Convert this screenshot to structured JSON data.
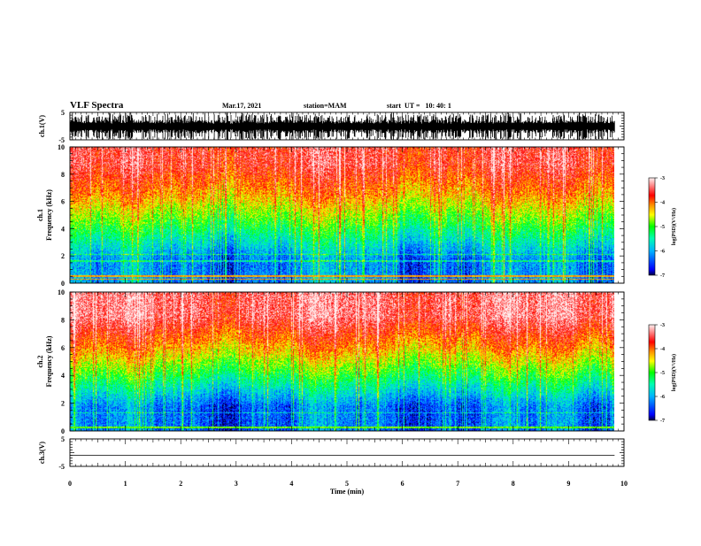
{
  "header": {
    "title": "VLF Spectra",
    "date": "Mar.17, 2021",
    "station": "station=MAM",
    "start": "start  UT =   10: 40: 1"
  },
  "chart_data": [
    {
      "type": "line",
      "ylabel": "ch.1(V)",
      "ylim": [
        -5,
        5
      ],
      "y_ticks": [
        "5",
        "-5"
      ],
      "description": "dense black impulsive waveform spanning most of the range"
    },
    {
      "type": "heatmap",
      "ylabel_line1": "ch.1",
      "ylabel_line2": "Frequency  (kHz)",
      "ylim": [
        0,
        10
      ],
      "y_ticks": [
        "0",
        "2",
        "4",
        "6",
        "8",
        "10"
      ],
      "colorbar": {
        "label": "log(PSD)(V²/Hz)",
        "ticks": [
          "-3",
          "-4",
          "-5",
          "-6",
          "-7"
        ],
        "range": [
          -7,
          -3
        ]
      },
      "bands": [
        {
          "freq_khz": [
            0,
            3.5
          ],
          "log_psd": -6.2,
          "color": "blue"
        },
        {
          "freq_khz": [
            3.5,
            5.5
          ],
          "log_psd": -5.0,
          "color": "green"
        },
        {
          "freq_khz": [
            5.5,
            7.5
          ],
          "log_psd": -4.2,
          "color": "yellow"
        },
        {
          "freq_khz": [
            7.5,
            10
          ],
          "log_psd": -3.6,
          "color": "red"
        }
      ]
    },
    {
      "type": "heatmap",
      "ylabel_line1": "ch.2",
      "ylabel_line2": "Frequency  (kHz)",
      "ylim": [
        0,
        10
      ],
      "y_ticks": [
        "0",
        "2",
        "4",
        "6",
        "8",
        "10"
      ],
      "colorbar": {
        "label": "log(PSD)(V²/Hz)",
        "ticks": [
          "-3",
          "-4",
          "-5",
          "-6",
          "-7"
        ],
        "range": [
          -7,
          -3
        ]
      },
      "bands": [
        {
          "freq_khz": [
            0,
            3.5
          ],
          "log_psd": -6.3,
          "color": "blue"
        },
        {
          "freq_khz": [
            3.5,
            5
          ],
          "log_psd": -5.0,
          "color": "green"
        },
        {
          "freq_khz": [
            5,
            6.5
          ],
          "log_psd": -4.3,
          "color": "yellow"
        },
        {
          "freq_khz": [
            6.5,
            10
          ],
          "log_psd": -3.4,
          "color": "red"
        }
      ]
    },
    {
      "type": "line",
      "ylabel": "ch.3(V)",
      "ylim": [
        -5,
        5
      ],
      "y_ticks": [
        "5",
        "-5"
      ],
      "description": "flat trace near -1 V"
    }
  ],
  "xaxis": {
    "label": "Time  (min)",
    "ticks": [
      "0",
      "1",
      "2",
      "3",
      "4",
      "5",
      "6",
      "7",
      "8",
      "9",
      "10"
    ],
    "xlim": [
      0,
      10
    ],
    "data_end_min": 9.83
  }
}
